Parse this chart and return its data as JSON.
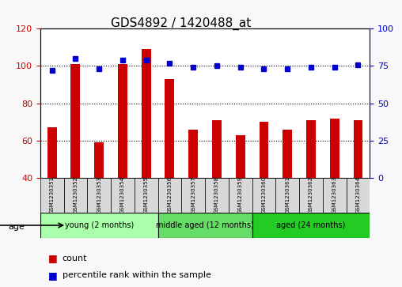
{
  "title": "GDS4892 / 1420488_at",
  "samples": [
    "GSM1230351",
    "GSM1230352",
    "GSM1230353",
    "GSM1230354",
    "GSM1230355",
    "GSM1230356",
    "GSM1230357",
    "GSM1230358",
    "GSM1230359",
    "GSM1230360",
    "GSM1230361",
    "GSM1230362",
    "GSM1230363",
    "GSM1230364"
  ],
  "counts": [
    67,
    101,
    59,
    101,
    109,
    93,
    66,
    71,
    63,
    70,
    66,
    71,
    72,
    71
  ],
  "percentiles": [
    72,
    80,
    73,
    79,
    79,
    77,
    74,
    75,
    74,
    73,
    73,
    74,
    74,
    76
  ],
  "ylim_left": [
    40,
    120
  ],
  "ylim_right": [
    0,
    100
  ],
  "yticks_left": [
    40,
    60,
    80,
    100,
    120
  ],
  "yticks_right": [
    0,
    25,
    50,
    75,
    100
  ],
  "groups": [
    {
      "label": "young (2 months)",
      "start": 0,
      "end": 5,
      "color": "#90EE90"
    },
    {
      "label": "middle aged (12 months)",
      "start": 5,
      "end": 9,
      "color": "#50C850"
    },
    {
      "label": "aged (24 months)",
      "start": 9,
      "end": 14,
      "color": "#00CC00"
    }
  ],
  "bar_color": "#CC0000",
  "dot_color": "#0000CC",
  "grid_color": "#000000",
  "tick_color_left": "#CC0000",
  "tick_color_right": "#0000CC",
  "background_color": "#F0F0F0",
  "plot_bg": "#FFFFFF"
}
